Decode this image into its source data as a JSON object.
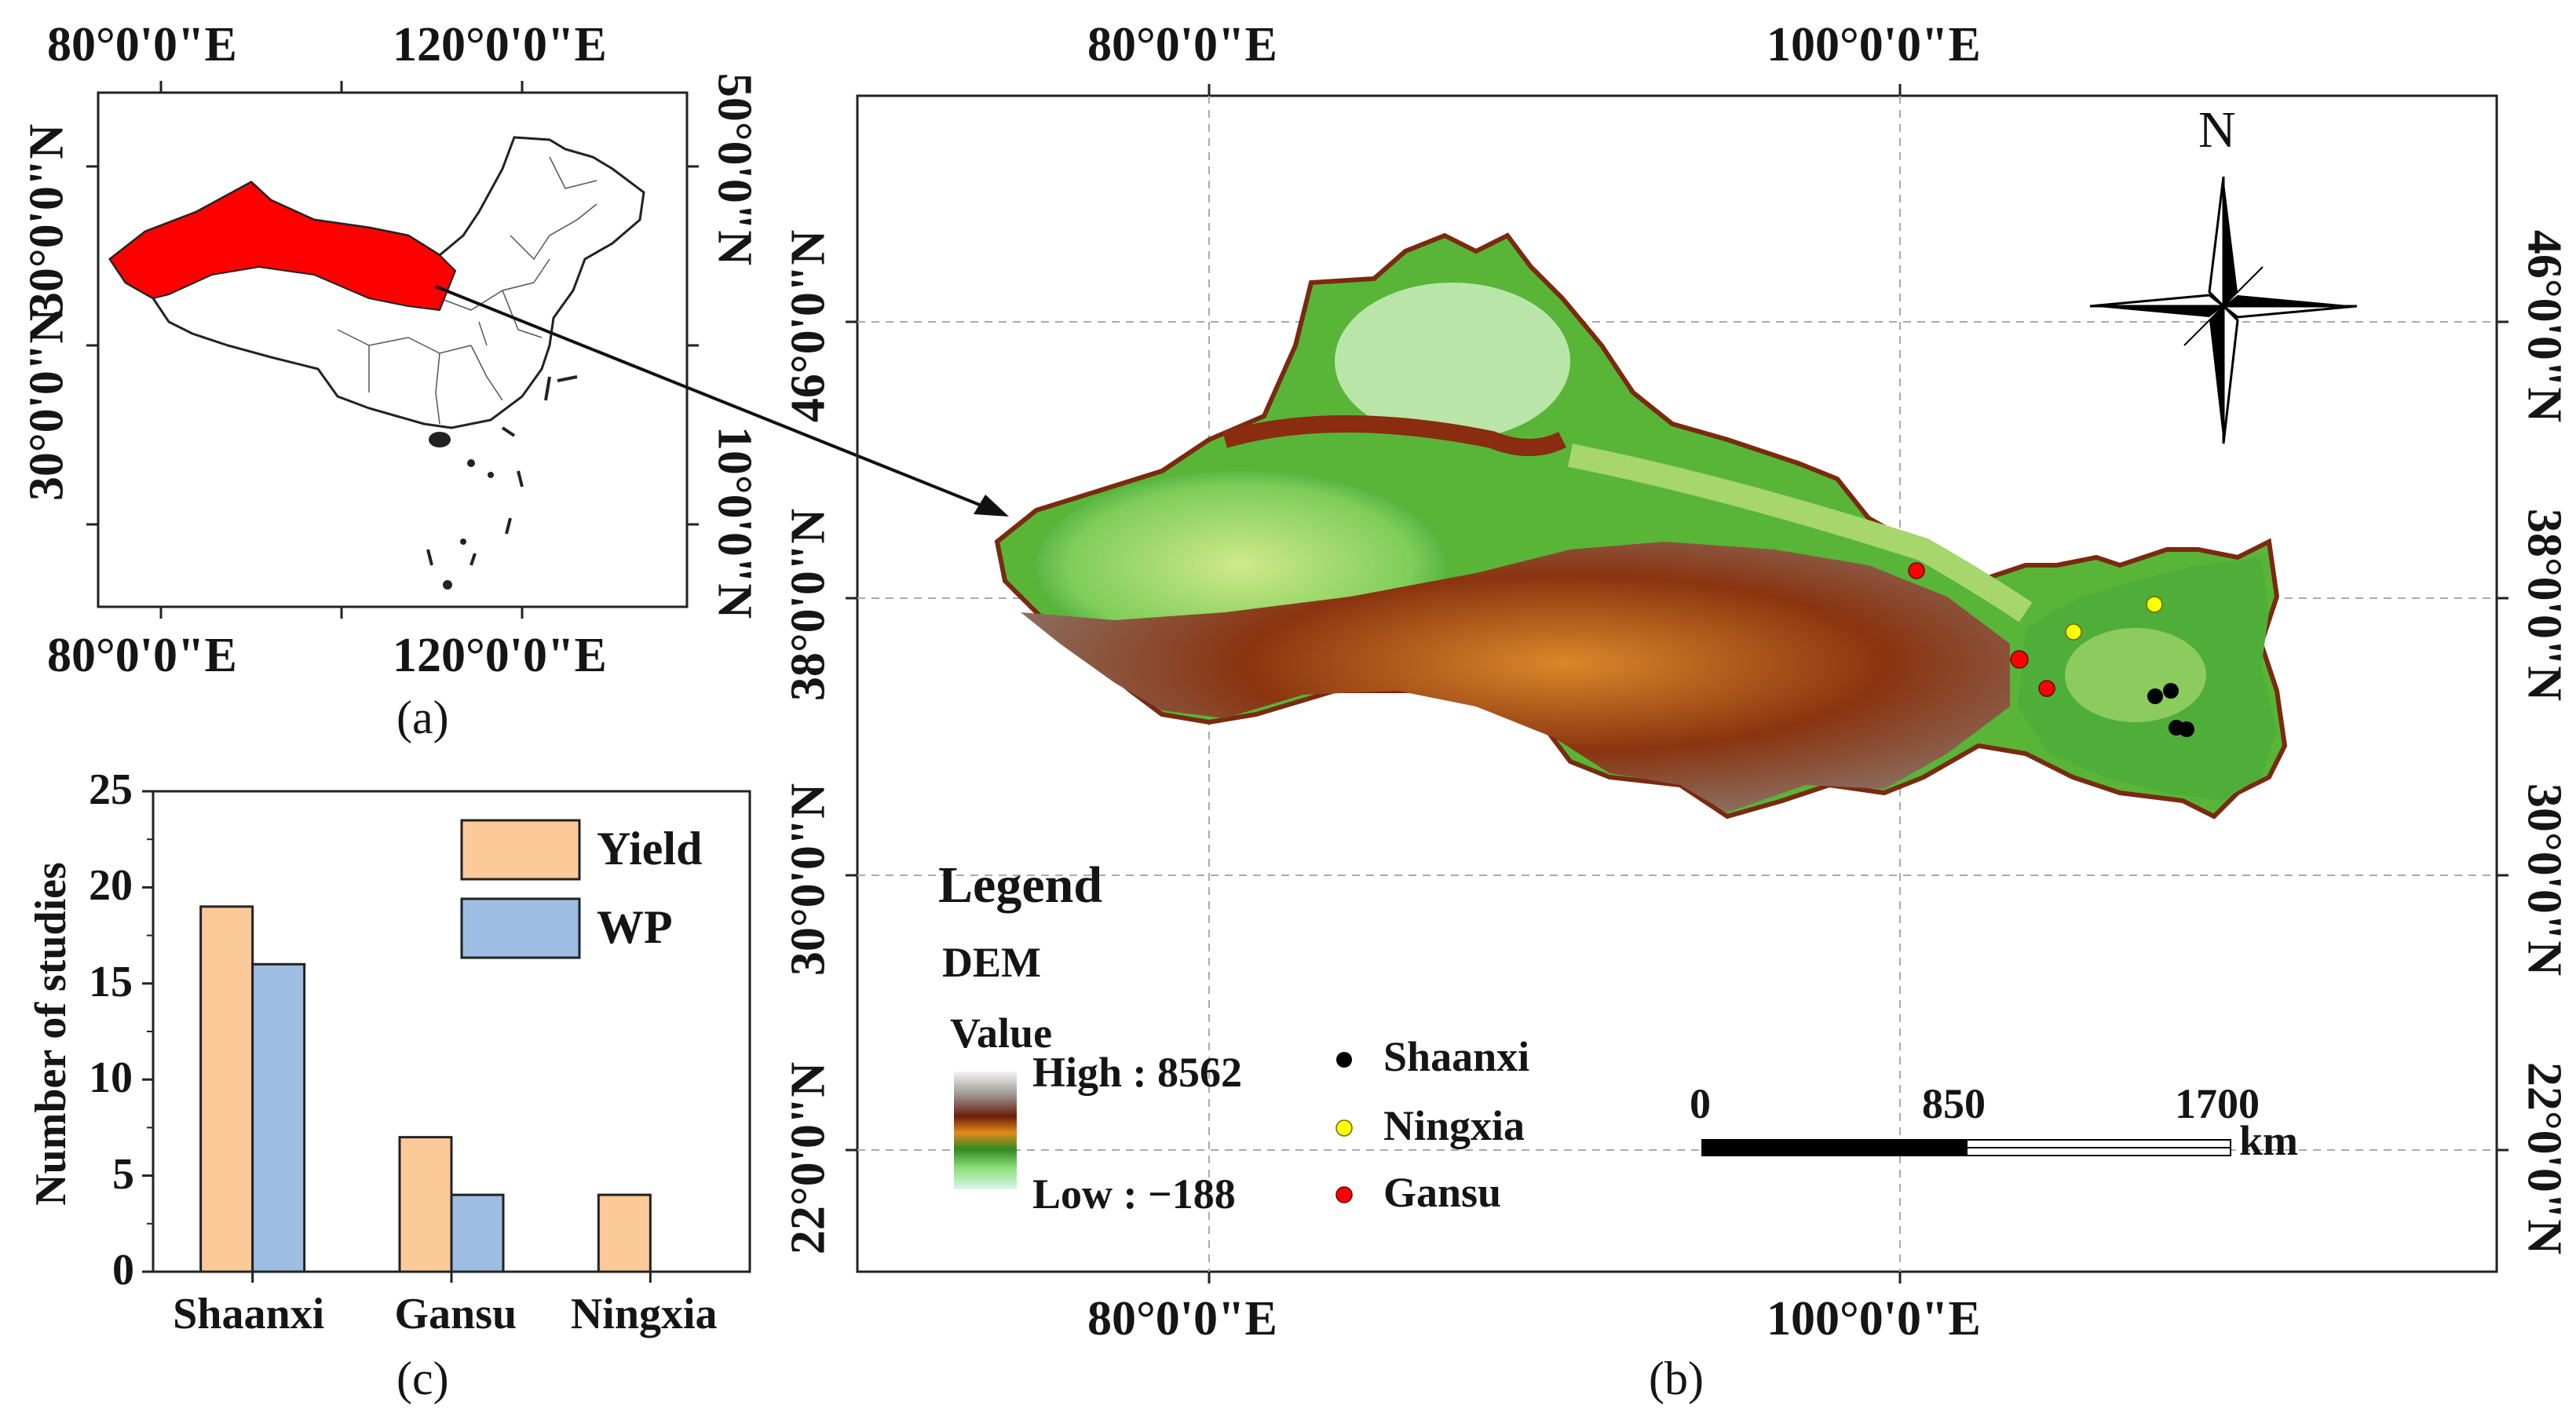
{
  "panel_a": {
    "caption": "(a)",
    "top_lon_labels": [
      "80°0'0\"E",
      "120°0'0\"E"
    ],
    "bottom_lon_labels": [
      "80°0'0\"E",
      "120°0'0\"E"
    ],
    "left_lat_labels": [
      "30°0'0\"N",
      "30°0'0\"N"
    ],
    "right_lat_labels": [
      "50°0'0\"N",
      "10°0'0\"N"
    ],
    "highlight_color": "#ff0000"
  },
  "panel_b": {
    "caption": "(b)",
    "top_lon_labels": [
      "80°0'0\"E",
      "100°0'0\"E"
    ],
    "bottom_lon_labels": [
      "80°0'0\"E",
      "100°0'0\"E"
    ],
    "left_lat_labels": [
      "46°0'0\"N",
      "38°0'0\"N",
      "30°0'0\"N",
      "22°0'0\"N"
    ],
    "right_lat_labels": [
      "46°0'0\"N",
      "38°0'0\"N",
      "30°0'0\"N",
      "22°0'0\"N"
    ],
    "north_label": "N",
    "legend": {
      "title": "Legend",
      "dem_title": "DEM",
      "value_label": "Value",
      "high_label": "High : 8562",
      "low_label": "Low : −188",
      "points": [
        {
          "name": "Shaanxi",
          "color": "#000000"
        },
        {
          "name": "Ningxia",
          "color": "#ffff00"
        },
        {
          "name": "Gansu",
          "color": "#ff0000"
        }
      ]
    },
    "scale_bar": {
      "ticks": [
        "0",
        "850",
        "1700"
      ],
      "unit": "km"
    }
  },
  "panel_c": {
    "caption": "(c)",
    "chart_data": {
      "type": "bar",
      "categories": [
        "Shaanxi",
        "Gansu",
        "Ningxia"
      ],
      "series": [
        {
          "name": "Yield",
          "values": [
            19,
            7,
            4
          ],
          "color": "#fcc999"
        },
        {
          "name": "WP",
          "values": [
            16,
            4,
            0
          ],
          "color": "#9dbde3"
        }
      ],
      "xlabel": "",
      "ylabel": "Number of studies",
      "ylim": [
        0,
        25
      ],
      "yticks": [
        "0",
        "5",
        "10",
        "15",
        "20",
        "25"
      ],
      "legend_position": "top-right",
      "grid": false
    }
  }
}
